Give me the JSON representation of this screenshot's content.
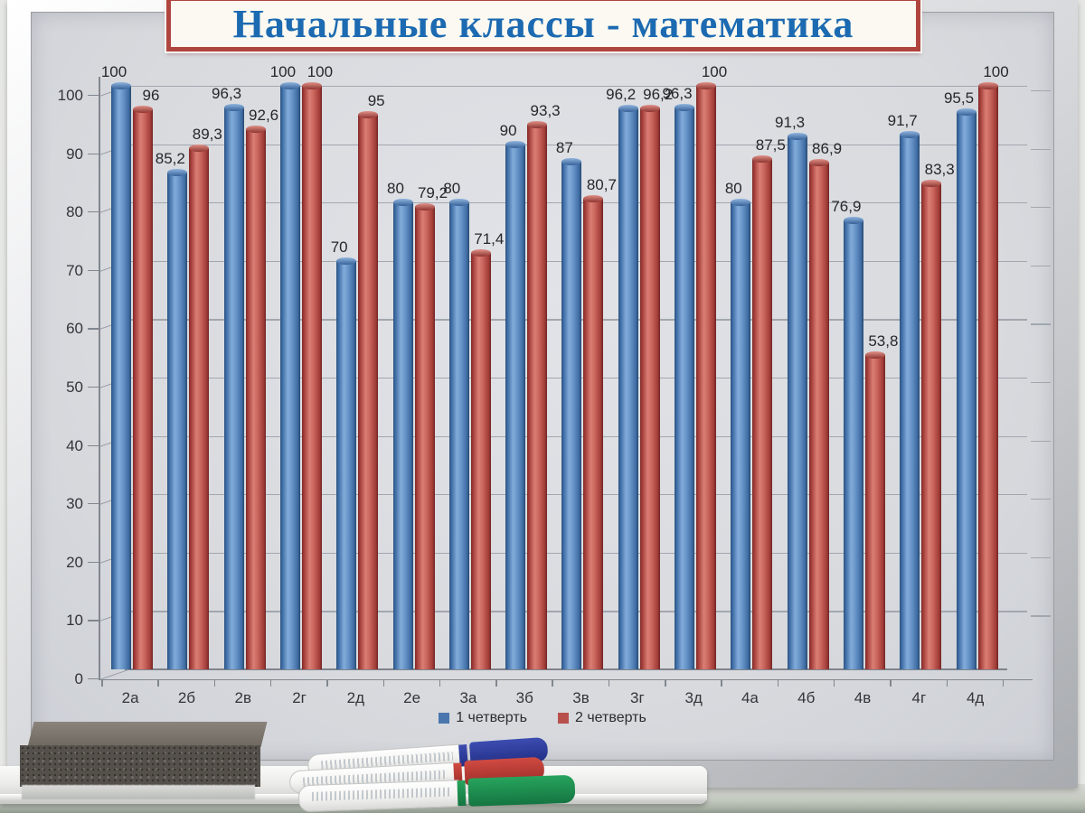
{
  "title": {
    "text": "Начальные классы - математика"
  },
  "chart_data": {
    "type": "bar",
    "bar_style": "3d-cylinder",
    "title": "Начальные классы - математика",
    "xlabel": "",
    "ylabel": "",
    "ylim": [
      0,
      100
    ],
    "yticks": [
      0,
      10,
      20,
      30,
      40,
      50,
      60,
      70,
      80,
      90,
      100
    ],
    "grid": true,
    "legend_position": "bottom",
    "decimal_separator": ",",
    "categories": [
      "2а",
      "2б",
      "2в",
      "2г",
      "2д",
      "2е",
      "3а",
      "3б",
      "3в",
      "3г",
      "3д",
      "4а",
      "4б",
      "4в",
      "4г",
      "4д"
    ],
    "series": [
      {
        "name": "1 четверть",
        "color": "#4a76ad",
        "values": [
          100,
          85.2,
          96.3,
          100,
          70,
          80,
          80,
          90,
          87,
          96.2,
          96.3,
          80,
          91.3,
          76.9,
          91.7,
          95.5
        ],
        "labels": [
          "100",
          "85,2",
          "96,3",
          "100",
          "70",
          "80",
          "80",
          "90",
          "87",
          "96,2",
          "96,3",
          "80",
          "91,3",
          "76,9",
          "91,7",
          "95,5"
        ]
      },
      {
        "name": "2 четверть",
        "color": "#b8504b",
        "values": [
          96,
          89.3,
          92.6,
          100,
          95,
          79.2,
          71.4,
          93.3,
          80.7,
          96.2,
          100,
          87.5,
          86.9,
          53.8,
          83.3,
          100
        ],
        "labels": [
          "96",
          "89,3",
          "92,6",
          "100",
          "95",
          "79,2",
          "71,4",
          "93,3",
          "80,7",
          "96,2",
          "100",
          "87,5",
          "86,9",
          "53,8",
          "83,3",
          "100"
        ]
      }
    ]
  },
  "tray_objects": {
    "eraser_color": "#55504b",
    "markers": [
      {
        "name": "marker-blue",
        "cap_color": "#2c3a96"
      },
      {
        "name": "marker-red",
        "cap_color": "#bf3b36"
      },
      {
        "name": "marker-green",
        "cap_color": "#1d8d4d"
      }
    ]
  }
}
